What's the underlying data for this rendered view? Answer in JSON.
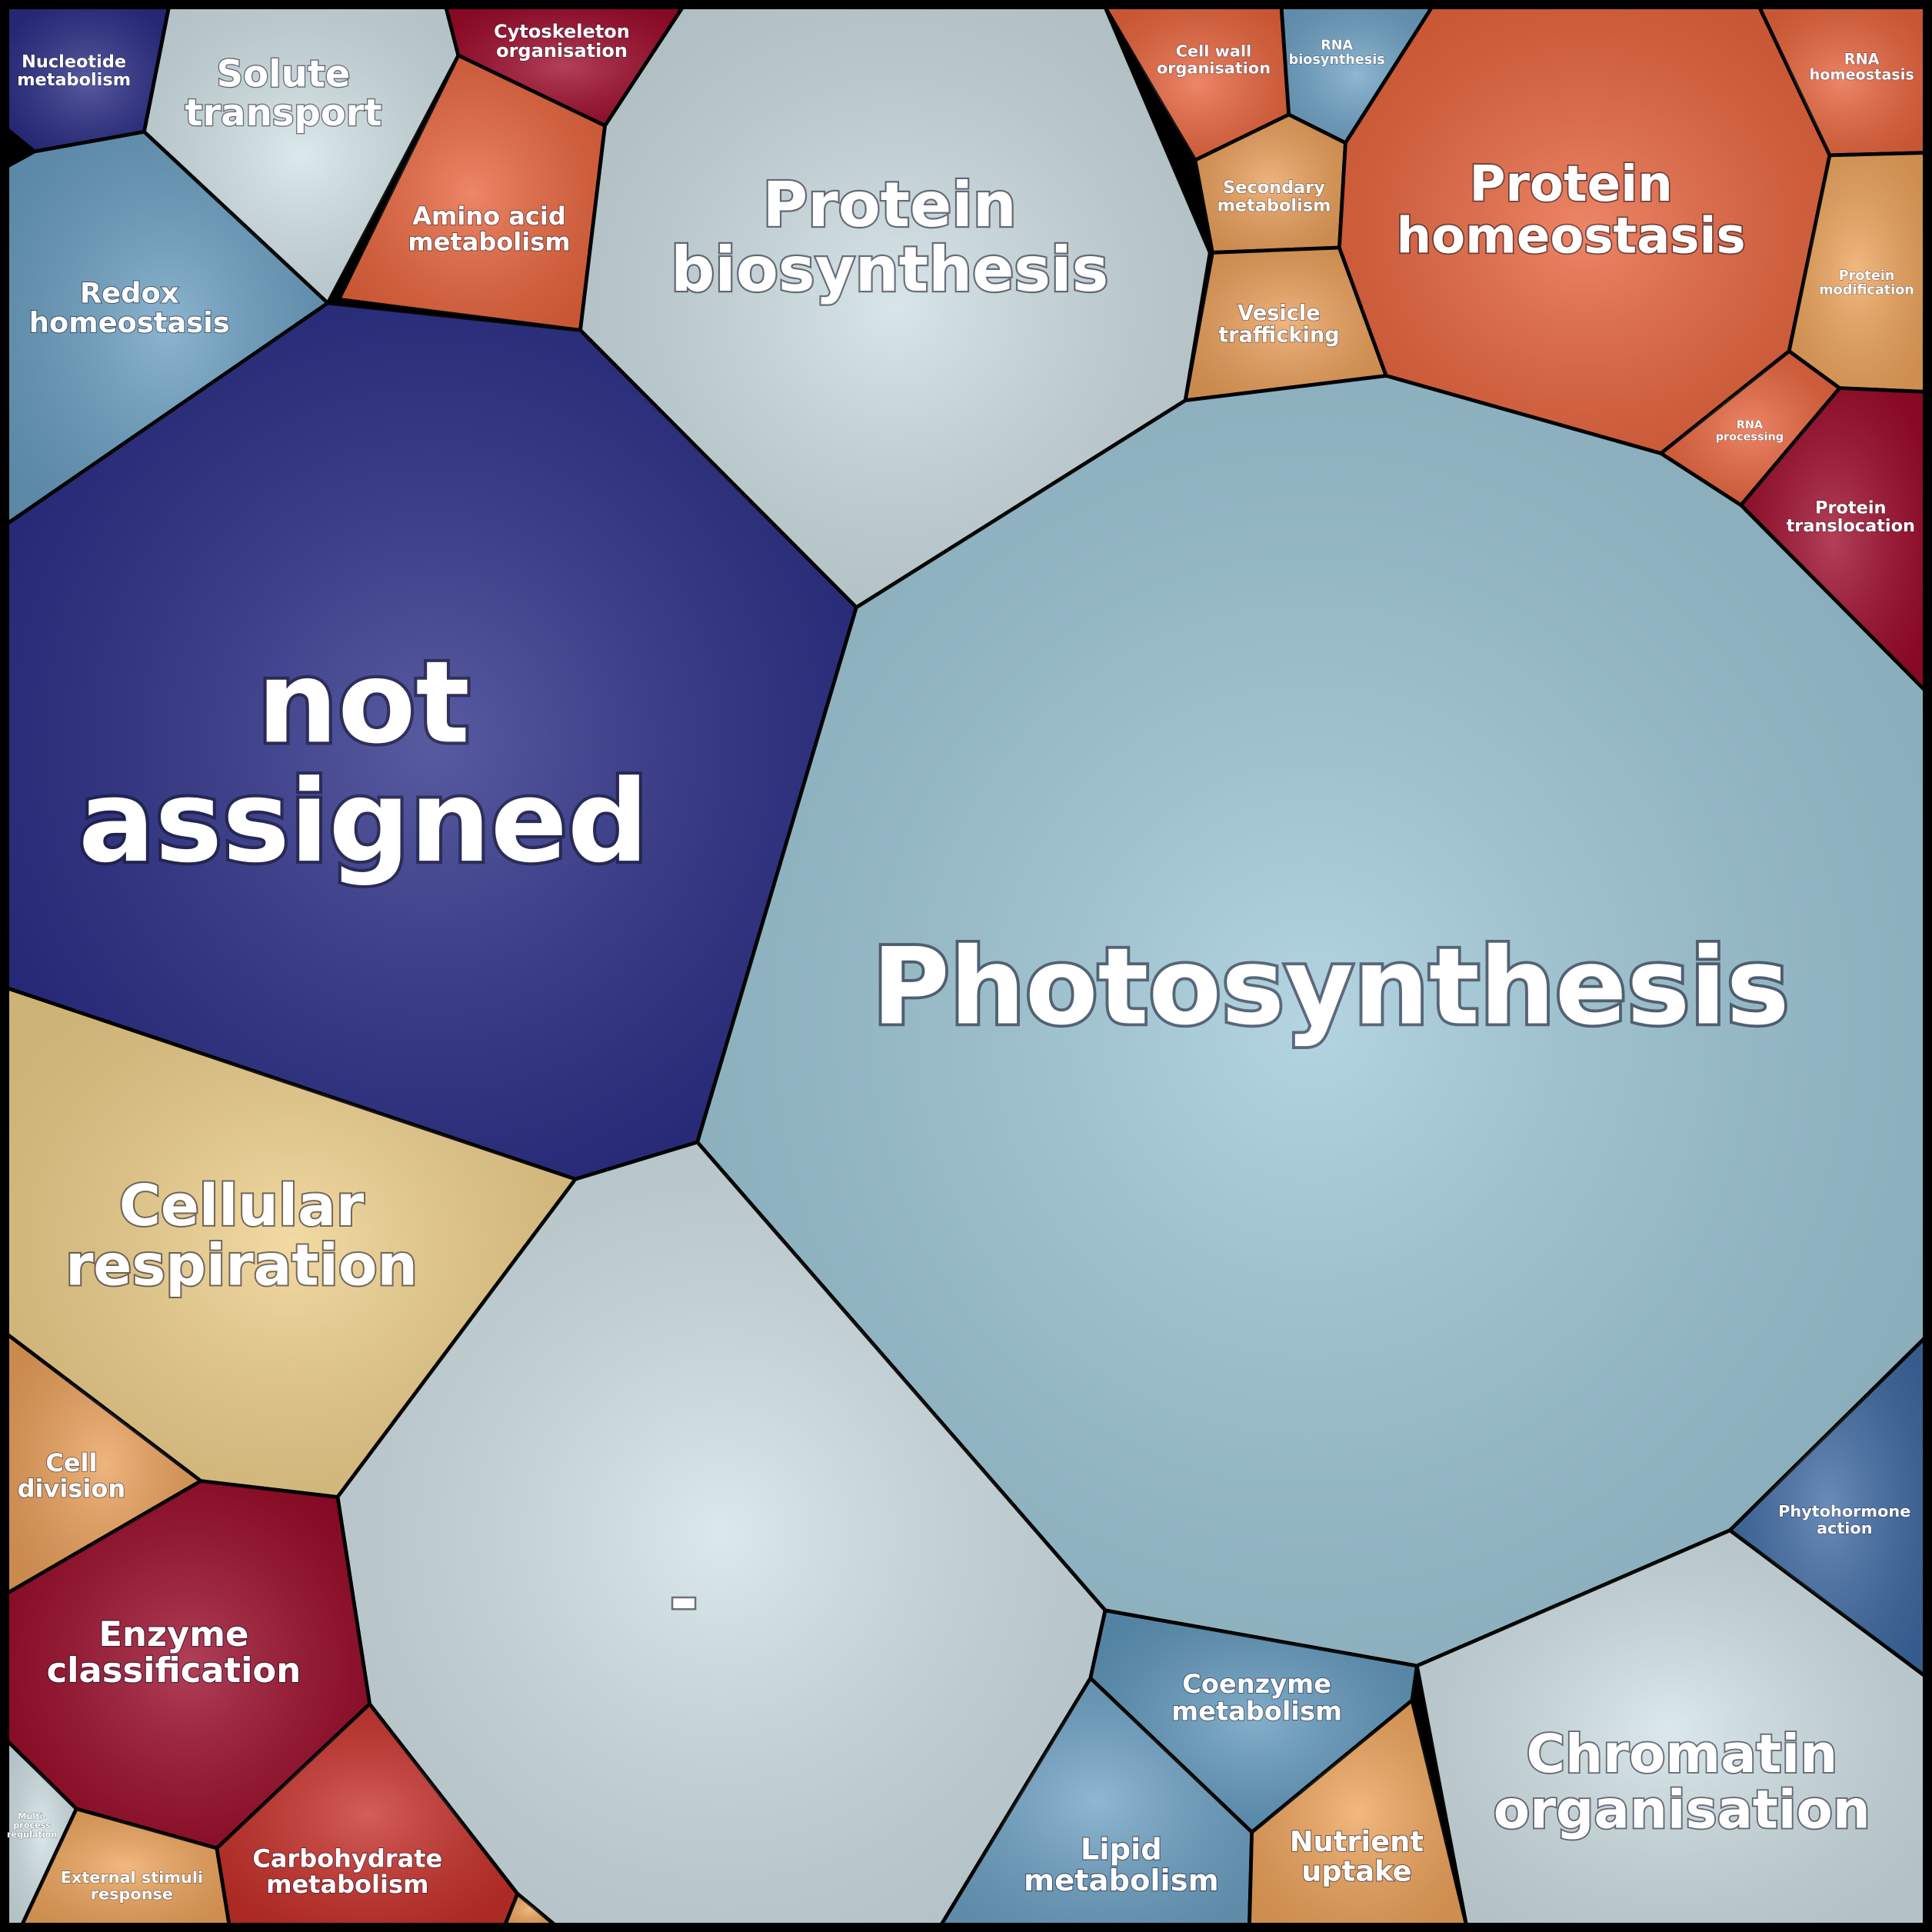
{
  "cells": [
    {
      "label_lines": [
        "Nucleotide",
        "metabolism"
      ],
      "color": "#2b2d86"
    },
    {
      "label_lines": [
        "Solute",
        "transport"
      ],
      "color": "#d2e3e8"
    },
    {
      "label_lines": [
        "Cytoskeleton",
        "organisation"
      ],
      "color": "#9e0a2a"
    },
    {
      "label_lines": [
        "Amino acid",
        "metabolism"
      ],
      "color": "#e8643c"
    },
    {
      "label_lines": [
        "Redox",
        "homeostasis"
      ],
      "color": "#6a9fc2"
    },
    {
      "label_lines": [
        "Protein",
        "biosynthesis"
      ],
      "color": "#cddee3"
    },
    {
      "label_lines": [
        "not",
        "assigned"
      ],
      "color": "#2a2d87"
    },
    {
      "label_lines": [
        "Cell wall",
        "organisation"
      ],
      "color": "#e8643c"
    },
    {
      "label_lines": [
        "RNA",
        "biosynthesis"
      ],
      "color": "#6fa3c6"
    },
    {
      "label_lines": [
        "Secondary",
        "metabolism"
      ],
      "color": "#eba05a"
    },
    {
      "label_lines": [
        "Vesicle",
        "trafficking"
      ],
      "color": "#eba05a"
    },
    {
      "label_lines": [
        "Protein",
        "homeostasis"
      ],
      "color": "#e8643c"
    },
    {
      "label_lines": [
        "RNA",
        "homeostasis"
      ],
      "color": "#e8643c"
    },
    {
      "label_lines": [
        "Protein",
        "modification"
      ],
      "color": "#efa55c"
    },
    {
      "label_lines": [
        "RNA",
        "processing"
      ],
      "color": "#e8643c"
    },
    {
      "label_lines": [
        "Protein",
        "translocation"
      ],
      "color": "#9e0a2a"
    },
    {
      "label_lines": [
        "Photosynthesis"
      ],
      "color": "#9ec8d8"
    },
    {
      "label_lines": [
        "Cellular",
        "respiration"
      ],
      "color": "#efd08a"
    },
    {
      "label_lines": [
        "-"
      ],
      "color": "#d1e2e7"
    },
    {
      "label_lines": [
        "Cell",
        "division"
      ],
      "color": "#eba05a"
    },
    {
      "label_lines": [
        "Enzyme",
        "classification"
      ],
      "color": "#9a0a28"
    },
    {
      "label_lines": [
        "Multi-",
        "process",
        "regulation"
      ],
      "color": "#d1e2e7"
    },
    {
      "label_lines": [
        "External stimuli",
        "response"
      ],
      "color": "#efa55c"
    },
    {
      "label_lines": [
        "Carbohydrate",
        "metabolism"
      ],
      "color": "#c8302a"
    },
    {
      "color": "#efa55c"
    },
    {
      "label_lines": [
        "Coenzyme",
        "metabolism"
      ],
      "color": "#6098bc"
    },
    {
      "label_lines": [
        "Lipid",
        "metabolism"
      ],
      "color": "#6fa3c6"
    },
    {
      "label_lines": [
        "Nutrient",
        "uptake"
      ],
      "color": "#efa55c"
    },
    {
      "label_lines": [
        "Chromatin",
        "organisation"
      ],
      "color": "#d1e2e7"
    },
    {
      "label_lines": [
        "Phytohormone",
        "action"
      ],
      "color": "#3f6ba4"
    }
  ]
}
